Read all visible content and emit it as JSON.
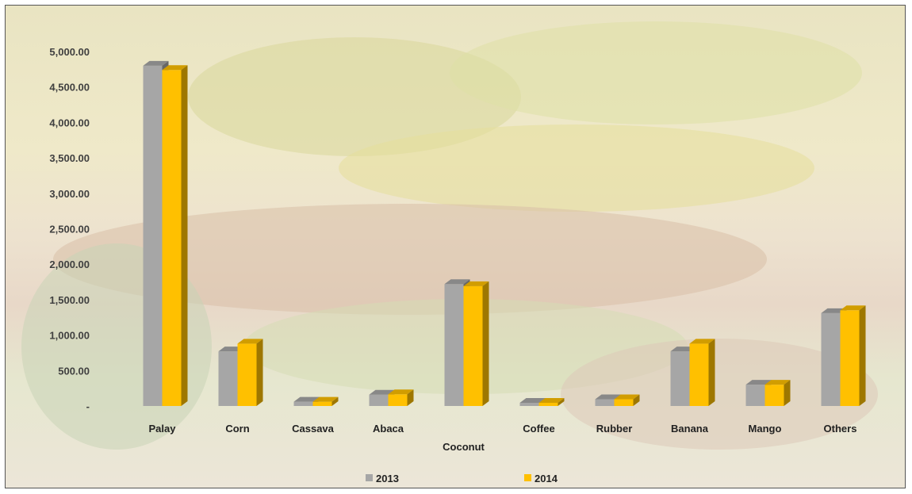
{
  "chart_data": {
    "type": "bar",
    "title": "",
    "xlabel": "",
    "ylabel": "",
    "ylim": [
      0,
      5000
    ],
    "yticks": [
      "-",
      "500.00",
      "1,000.00",
      "1,500.00",
      "2,000.00",
      "2,500.00",
      "3,000.00",
      "3,500.00",
      "4,000.00",
      "4,500.00",
      "5,000.00"
    ],
    "categories": [
      "Palay",
      "Corn",
      "Cassava",
      "Abaca",
      "Coconut",
      "Coffee",
      "Rubber",
      "Banana",
      "Mango",
      "Others"
    ],
    "series": [
      {
        "name": "2013",
        "color": "#a6a6a6",
        "values": [
          4800,
          770,
          60,
          160,
          1720,
          45,
          95,
          770,
          300,
          1310
        ]
      },
      {
        "name": "2014",
        "color": "#ffc000",
        "values": [
          4740,
          880,
          60,
          165,
          1690,
          45,
          95,
          880,
          300,
          1350
        ]
      }
    ],
    "grid": false,
    "legend": "bottom",
    "style": "3d-columns"
  }
}
